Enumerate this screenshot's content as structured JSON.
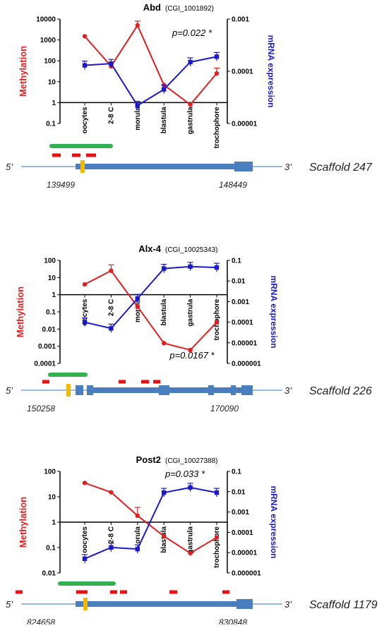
{
  "colors": {
    "methylation": "#e02020",
    "expression": "#1a1acc",
    "gene": "#4a7fbf",
    "tss": "#f5b800",
    "cpg_island": "#2fb24f",
    "cpg_marker": "#e81010",
    "scaffold_line": "#5b8fd0"
  },
  "chart_data": [
    {
      "type": "line",
      "title": "Abd",
      "subtitle": "(CGI_1001892)",
      "categories": [
        "oocytes",
        "2-8 C",
        "morula",
        "blastula",
        "gastrula",
        "trochophore"
      ],
      "ylabel_left": "Methylation",
      "ylabel_right": "mRNA expression",
      "yscale": "log",
      "ylim_left": [
        0.1,
        10000
      ],
      "ylim_right": [
        1e-05,
        0.001
      ],
      "yticks_left": [
        "0.1",
        "1",
        "10",
        "100",
        "1000",
        "10000"
      ],
      "yticks_right": [
        "0.00001",
        "0.0001",
        "0.001"
      ],
      "pvalue": "p=0.022 *",
      "series": [
        {
          "name": "Methylation",
          "axis": "left",
          "values": [
            1500,
            55,
            5000,
            7,
            0.8,
            25
          ]
        },
        {
          "name": "mRNA expression",
          "axis": "right",
          "values": [
            0.00013,
            0.00014,
            2.2e-05,
            4.5e-05,
            0.00015,
            0.00019
          ]
        }
      ],
      "gene_model": {
        "scaffold": "Scaffold 247",
        "start": "139499",
        "end": "148449",
        "five_prime": "5’",
        "three_prime": "3’"
      }
    },
    {
      "type": "line",
      "title": "Alx-4",
      "subtitle": "(CGI_10025343)",
      "categories": [
        "oocytes",
        "2-8 C",
        "morula",
        "blastula",
        "gastrula",
        "trochophore"
      ],
      "ylabel_left": "Methylation",
      "ylabel_right": "mRNA expression",
      "yscale": "log",
      "ylim_left": [
        0.0001,
        100
      ],
      "ylim_right": [
        1e-06,
        0.1
      ],
      "yticks_left": [
        "0.0001",
        "0.001",
        "0.01",
        "0.1",
        "1",
        "10",
        "100"
      ],
      "yticks_right": [
        "0.000001",
        "0.00001",
        "0.0001",
        "0.001",
        "0.01",
        "0.1"
      ],
      "pvalue": "p=0.0167 *",
      "series": [
        {
          "name": "Methylation",
          "axis": "left",
          "values": [
            4,
            25,
            0.2,
            0.0015,
            0.0006,
            0.025
          ]
        },
        {
          "name": "mRNA expression",
          "axis": "right",
          "values": [
            0.0001,
            5e-05,
            0.0014,
            0.04,
            0.05,
            0.045
          ]
        }
      ],
      "gene_model": {
        "scaffold": "Scaffold 226",
        "start": "150258",
        "end": "170090",
        "five_prime": "5’",
        "three_prime": "3’"
      }
    },
    {
      "type": "line",
      "title": "Post2",
      "subtitle": "(CGI_10027388)",
      "categories": [
        "oocytes",
        "2-8 C",
        "morula",
        "blastula",
        "gastrula",
        "trochophore"
      ],
      "category_labels_shown": [
        "oocytes",
        "2-8 C",
        "orula",
        "blastula",
        "gastrula",
        "trochophore"
      ],
      "ylabel_left": "Methylation",
      "ylabel_right": "mRNA expression",
      "yscale": "log",
      "ylim_left": [
        0.01,
        100
      ],
      "ylim_right": [
        1e-06,
        0.1
      ],
      "yticks_left": [
        "0.01",
        "0.1",
        "1",
        "10",
        "100"
      ],
      "yticks_right": [
        "0.000001",
        "0.00001",
        "0.0001",
        "0.001",
        "0.01",
        "0.1"
      ],
      "pvalue": "p=0.033 *",
      "series": [
        {
          "name": "Methylation",
          "axis": "left",
          "values": [
            35,
            15,
            1.8,
            0.28,
            0.06,
            0.25
          ]
        },
        {
          "name": "mRNA expression",
          "axis": "right",
          "values": [
            5e-06,
            1.8e-05,
            1.5e-05,
            0.009,
            0.016,
            0.009
          ]
        }
      ],
      "gene_model": {
        "scaffold": "Scaffold 1179",
        "start": "824658",
        "end": "830848",
        "five_prime": "5’",
        "three_prime": "3’"
      }
    }
  ]
}
